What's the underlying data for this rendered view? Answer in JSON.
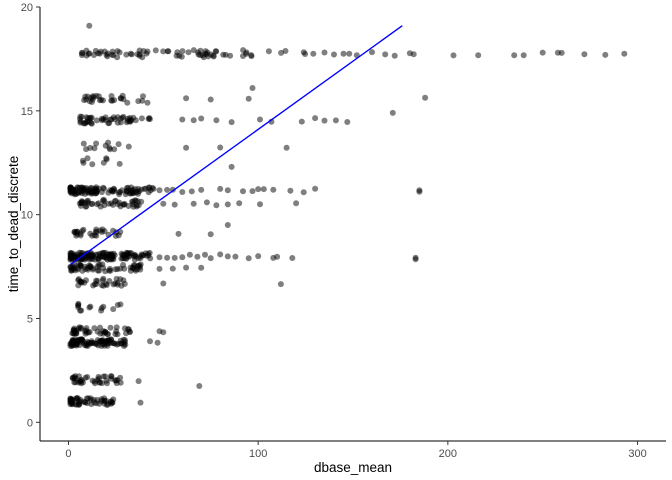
{
  "chart_data": {
    "type": "scatter",
    "title": "",
    "xlabel": "dbase_mean",
    "ylabel": "time_to_dead_discrete",
    "xlim": [
      -15,
      315
    ],
    "ylim": [
      -0.9,
      20.0
    ],
    "x_ticks": [
      {
        "value": 0,
        "label": "0"
      },
      {
        "value": 100,
        "label": "100"
      },
      {
        "value": 200,
        "label": "200"
      },
      {
        "value": 300,
        "label": "300"
      }
    ],
    "y_ticks": [
      {
        "value": 0,
        "label": "0"
      },
      {
        "value": 5,
        "label": "5"
      },
      {
        "value": 10,
        "label": "10"
      },
      {
        "value": 15,
        "label": "15"
      },
      {
        "value": 20,
        "label": "20"
      }
    ],
    "grid": false,
    "legend": "none",
    "point_color": "#000000",
    "point_opacity": 0.5,
    "trend_line": {
      "color": "#0000ff",
      "x": [
        1,
        176
      ],
      "y": [
        7.6,
        19.1
      ]
    },
    "bands": [
      {
        "y": 17.75,
        "x_min": 7,
        "x_max": 130,
        "n": 75,
        "sparse_x": [
          135,
          140,
          145,
          148,
          152,
          160,
          167,
          172,
          180,
          182,
          203,
          216,
          235,
          240,
          250,
          258,
          260,
          272,
          283,
          293
        ]
      },
      {
        "y": 15.55,
        "x_min": 8,
        "x_max": 43,
        "n": 28,
        "sparse_x": [
          62,
          75,
          95,
          188
        ]
      },
      {
        "y": 14.55,
        "x_min": 6,
        "x_max": 44,
        "n": 50,
        "sparse_x": [
          60,
          66,
          70,
          78,
          86,
          101,
          107,
          123,
          130,
          135,
          141,
          147
        ]
      },
      {
        "y": 13.3,
        "x_min": 8,
        "x_max": 35,
        "n": 12,
        "sparse_x": [
          62,
          80,
          115
        ]
      },
      {
        "y": 12.6,
        "x_min": 7,
        "x_max": 30,
        "n": 8,
        "sparse_x": []
      },
      {
        "y": 11.15,
        "x_min": 1,
        "x_max": 45,
        "n": 110,
        "sparse_x": [
          48,
          52,
          55,
          60,
          65,
          70,
          80,
          84,
          92,
          97,
          100,
          103,
          108,
          117,
          124,
          130,
          185
        ]
      },
      {
        "y": 10.55,
        "x_min": 6,
        "x_max": 40,
        "n": 45,
        "sparse_x": [
          50,
          56,
          66,
          73,
          78,
          84,
          90,
          101,
          120
        ]
      },
      {
        "y": 9.15,
        "x_min": 3,
        "x_max": 30,
        "n": 28,
        "sparse_x": [
          58,
          75
        ]
      },
      {
        "y": 8.0,
        "x_min": 1,
        "x_max": 45,
        "n": 130,
        "sparse_x": [
          48,
          52,
          56,
          60,
          64,
          68,
          72,
          75,
          80,
          84,
          88,
          95,
          100,
          108,
          110,
          118,
          183
        ]
      },
      {
        "y": 7.45,
        "x_min": 1,
        "x_max": 40,
        "n": 60,
        "sparse_x": [
          48,
          55,
          62,
          70
        ]
      },
      {
        "y": 6.75,
        "x_min": 5,
        "x_max": 33,
        "n": 30,
        "sparse_x": [
          50,
          112
        ]
      },
      {
        "y": 5.55,
        "x_min": 5,
        "x_max": 30,
        "n": 14,
        "sparse_x": []
      },
      {
        "y": 4.4,
        "x_min": 2,
        "x_max": 33,
        "n": 45,
        "sparse_x": [
          48,
          50
        ]
      },
      {
        "y": 3.85,
        "x_min": 1,
        "x_max": 30,
        "n": 90,
        "sparse_x": [
          43,
          47
        ]
      },
      {
        "y": 2.05,
        "x_min": 2,
        "x_max": 30,
        "n": 40,
        "sparse_x": [
          37
        ]
      },
      {
        "y": 1.0,
        "x_min": 1,
        "x_max": 25,
        "n": 55,
        "sparse_x": []
      }
    ],
    "isolated_points": [
      {
        "x": 11,
        "y": 19.1
      },
      {
        "x": 69,
        "y": 1.75
      },
      {
        "x": 185,
        "y": 11.1
      },
      {
        "x": 183,
        "y": 7.85
      },
      {
        "x": 171,
        "y": 14.9
      },
      {
        "x": 97,
        "y": 16.1
      },
      {
        "x": 86,
        "y": 12.3
      },
      {
        "x": 84,
        "y": 9.5
      },
      {
        "x": 38,
        "y": 0.95
      }
    ]
  }
}
